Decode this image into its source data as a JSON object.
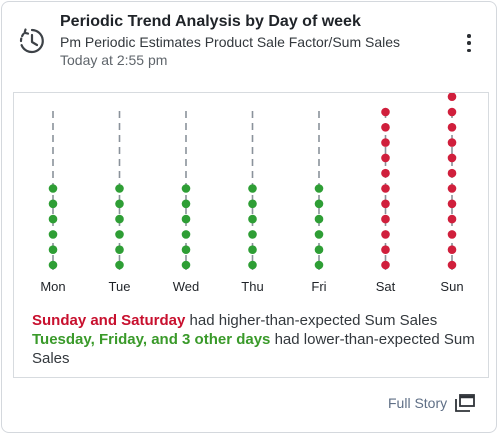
{
  "card": {
    "title": "Periodic Trend Analysis by Day of week",
    "subtitle": "Pm Periodic Estimates Product Sale Factor/Sum Sales",
    "timestamp": "Today at 2:55 pm",
    "icon": "history-clock-icon",
    "menu_icon": "kebab-menu-icon"
  },
  "chart_data": {
    "type": "scatter",
    "categories": [
      "Mon",
      "Tue",
      "Wed",
      "Thu",
      "Fri",
      "Sat",
      "Sun"
    ],
    "values": [
      6,
      6,
      6,
      6,
      6,
      11,
      12
    ],
    "highlight": [
      "normal",
      "normal",
      "normal",
      "normal",
      "normal",
      "high",
      "high"
    ],
    "colors": {
      "normal": "#2e9e35",
      "high": "#d01f3c",
      "stem": "#8a929b"
    },
    "ylim": [
      0,
      12
    ],
    "grid": false,
    "legend": "none"
  },
  "insights": {
    "line1_highlight": "Sunday and Saturday",
    "line1_rest": " had higher-than-expected Sum Sales",
    "line2_highlight": "Tuesday, Friday, and 3 other days",
    "line2_rest": " had lower-than-expected Sum Sales"
  },
  "footer": {
    "full_story_label": "Full Story",
    "full_story_icon": "open-in-new-window-icon"
  }
}
